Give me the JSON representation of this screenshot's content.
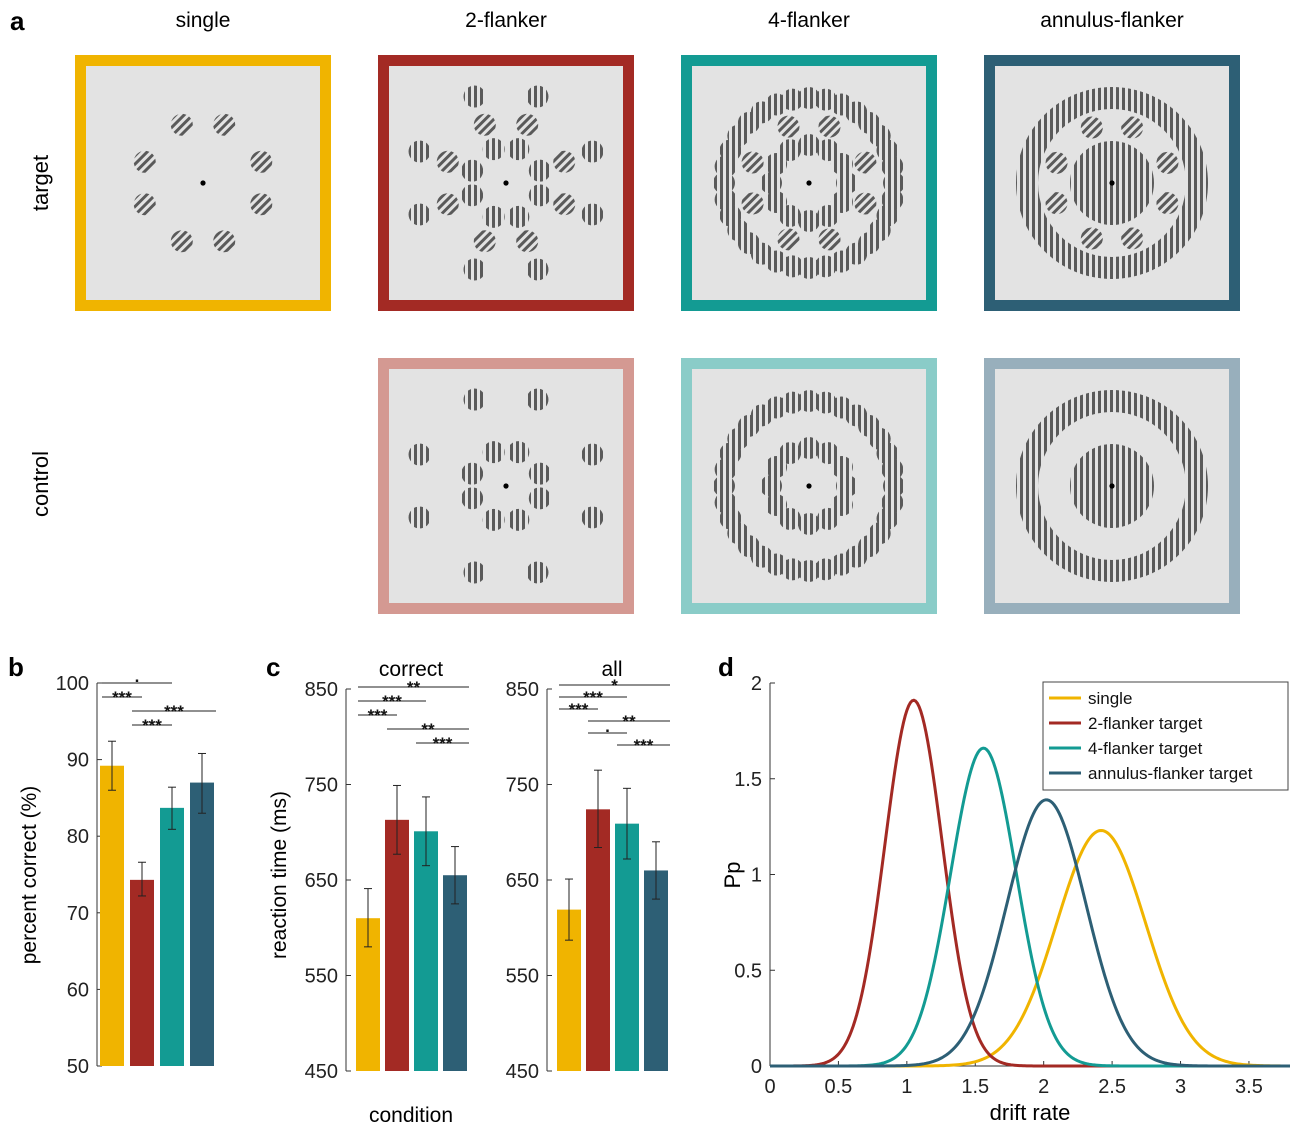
{
  "panel_a": {
    "label": "a",
    "columns": [
      "single",
      "2-flanker",
      "4-flanker",
      "annulus-flanker"
    ],
    "rows": [
      "target",
      "control"
    ],
    "frame_colors": {
      "single": "#F0B400",
      "2-flanker-target": "#A32A24",
      "4-flanker-target": "#139B93",
      "annulus-flanker-target": "#2D5F75",
      "2-flanker-control": "#D49992",
      "4-flanker-control": "#8ACCC8",
      "annulus-flanker-control": "#98AFBC"
    }
  },
  "chart_data": [
    {
      "panel": "b",
      "type": "bar",
      "title": "",
      "xlabel": "",
      "ylabel": "percent correct (%)",
      "ylim": [
        50,
        100
      ],
      "yticks": [
        50,
        60,
        70,
        80,
        90,
        100
      ],
      "categories": [
        "single",
        "2-flanker target",
        "4-flanker target",
        "annulus-flanker target"
      ],
      "colors": [
        "#F0B400",
        "#A32A24",
        "#139B93",
        "#2D5F75"
      ],
      "values": [
        89.2,
        74.3,
        83.7,
        87.0
      ],
      "error_low": [
        86.0,
        72.2,
        80.9,
        83.0
      ],
      "error_high": [
        92.4,
        76.6,
        86.4,
        90.8
      ],
      "significance": [
        {
          "from": 0,
          "to": 2,
          "label": "."
        },
        {
          "from": 0,
          "to": 1,
          "label": "***"
        },
        {
          "from": 1,
          "to": 3,
          "label": "***"
        },
        {
          "from": 1,
          "to": 2,
          "label": "***"
        }
      ]
    },
    {
      "panel": "c",
      "type": "bar",
      "title": "correct",
      "xlabel": "condition",
      "ylabel": "reaction time (ms)",
      "ylim": [
        450,
        850
      ],
      "yticks": [
        450,
        550,
        650,
        750,
        850
      ],
      "categories": [
        "single",
        "2-flanker target",
        "4-flanker target",
        "annulus-flanker target"
      ],
      "colors": [
        "#F0B400",
        "#A32A24",
        "#139B93",
        "#2D5F75"
      ],
      "values": [
        610,
        713,
        701,
        655
      ],
      "error_low": [
        580,
        677,
        665,
        625
      ],
      "error_high": [
        641,
        749,
        737,
        685
      ],
      "significance": [
        {
          "from": 0,
          "to": 3,
          "label": "**"
        },
        {
          "from": 0,
          "to": 2,
          "label": "***"
        },
        {
          "from": 0,
          "to": 1,
          "label": "***"
        },
        {
          "from": 1,
          "to": 3,
          "label": "**"
        },
        {
          "from": 2,
          "to": 3,
          "label": "***"
        }
      ]
    },
    {
      "panel": "c",
      "type": "bar",
      "title": "all",
      "xlabel": "",
      "ylabel": "",
      "ylim": [
        450,
        850
      ],
      "yticks": [
        450,
        550,
        650,
        750,
        850
      ],
      "categories": [
        "single",
        "2-flanker target",
        "4-flanker target",
        "annulus-flanker target"
      ],
      "colors": [
        "#F0B400",
        "#A32A24",
        "#139B93",
        "#2D5F75"
      ],
      "values": [
        619,
        724,
        709,
        660
      ],
      "error_low": [
        587,
        684,
        672,
        630
      ],
      "error_high": [
        651,
        765,
        746,
        690
      ],
      "significance": [
        {
          "from": 0,
          "to": 3,
          "label": "*"
        },
        {
          "from": 0,
          "to": 2,
          "label": "***"
        },
        {
          "from": 0,
          "to": 1,
          "label": "***"
        },
        {
          "from": 1,
          "to": 3,
          "label": "**"
        },
        {
          "from": 1,
          "to": 2,
          "label": "."
        },
        {
          "from": 2,
          "to": 3,
          "label": "***"
        }
      ]
    },
    {
      "panel": "d",
      "type": "line",
      "title": "",
      "xlabel": "drift rate",
      "ylabel": "Pp",
      "xlim": [
        0,
        3.8
      ],
      "ylim": [
        0,
        2
      ],
      "xticks": [
        0,
        0.5,
        1,
        1.5,
        2,
        2.5,
        3,
        3.5
      ],
      "yticks": [
        0,
        0.5,
        1,
        1.5,
        2
      ],
      "legend_position": "top-right",
      "series": [
        {
          "name": "single",
          "color": "#F0B400",
          "mean": 2.42,
          "sd": 0.325,
          "peak": 1.23
        },
        {
          "name": "2-flanker target",
          "color": "#A32A24",
          "mean": 1.05,
          "sd": 0.21,
          "peak": 1.91
        },
        {
          "name": "4-flanker target",
          "color": "#139B93",
          "mean": 1.56,
          "sd": 0.24,
          "peak": 1.66
        },
        {
          "name": "annulus-flanker target",
          "color": "#2D5F75",
          "mean": 2.02,
          "sd": 0.29,
          "peak": 1.39
        }
      ]
    }
  ]
}
